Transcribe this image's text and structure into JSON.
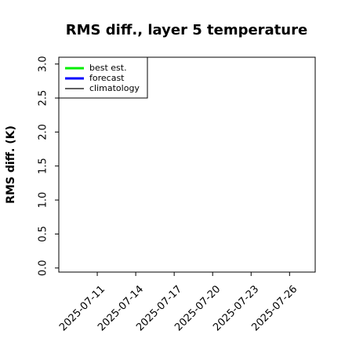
{
  "chart_data": {
    "type": "line",
    "title": "RMS diff., layer 5 temperature",
    "y_label": "RMS diff. (K)",
    "x": [],
    "series": [
      {
        "name": "best est.",
        "color": "#00ee00",
        "linewidth": 3,
        "values": []
      },
      {
        "name": "forecast",
        "color": "#0000ff",
        "linewidth": 3,
        "values": []
      },
      {
        "name": "climatology",
        "color": "#000000",
        "linewidth": 1.2,
        "values": []
      }
    ],
    "xlim": [
      "2025-07-08",
      "2025-07-28"
    ],
    "xticks": [
      "2025-07-11",
      "2025-07-14",
      "2025-07-17",
      "2025-07-20",
      "2025-07-23",
      "2025-07-26"
    ],
    "highlight_xtick": "2025-07-17",
    "highlight_color": "#228b22",
    "ylim": [
      -0.06,
      3.1
    ],
    "yticks": [
      {
        "value": 0,
        "label": "0.0"
      },
      0.5,
      {
        "value": 1,
        "label": "1.0"
      },
      1.5,
      {
        "value": 2,
        "label": "2.0"
      },
      2.5,
      {
        "value": 3,
        "label": "3.0"
      }
    ],
    "legend": "upper left",
    "grid": false
  }
}
